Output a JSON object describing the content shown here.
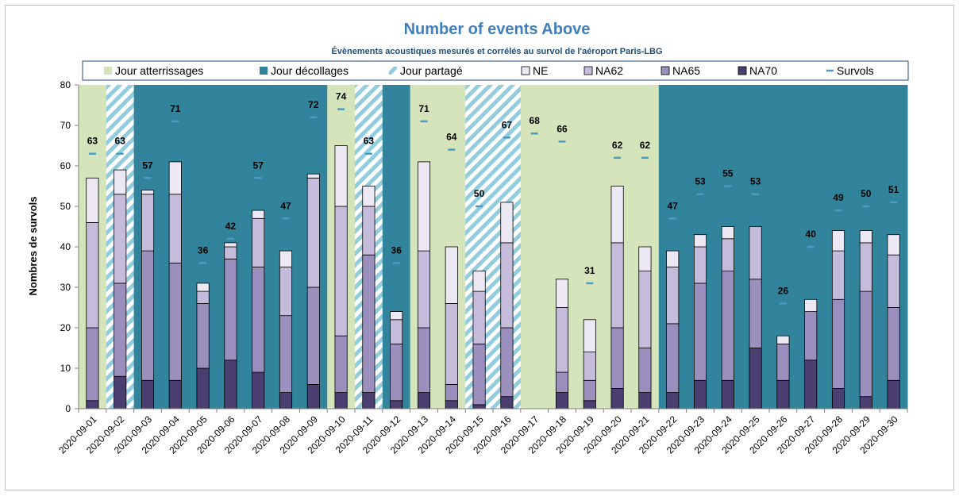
{
  "chart_data": {
    "type": "bar",
    "title": "Number of events Above",
    "subtitle": "Évènements acoustiques mesurés et corrélés au survol de l'aéroport Paris-LBG",
    "xlabel": "",
    "ylabel": "Nombres de survols",
    "ylim": [
      0,
      80
    ],
    "yticks": [
      0,
      10,
      20,
      30,
      40,
      50,
      60,
      70,
      80
    ],
    "categories": [
      "2020-09-01",
      "2020-09-02",
      "2020-09-03",
      "2020-09-04",
      "2020-09-05",
      "2020-09-06",
      "2020-09-07",
      "2020-09-08",
      "2020-09-09",
      "2020-09-10",
      "2020-09-11",
      "2020-09-12",
      "2020-09-13",
      "2020-09-14",
      "2020-09-15",
      "2020-09-16",
      "2020-09-17",
      "2020-09-18",
      "2020-09-19",
      "2020-09-20",
      "2020-09-21",
      "2020-09-22",
      "2020-09-23",
      "2020-09-24",
      "2020-09-25",
      "2020-09-26",
      "2020-09-27",
      "2020-09-28",
      "2020-09-29",
      "2020-09-30"
    ],
    "background_mode": [
      "atterrissages",
      "partage",
      "decollages",
      "decollages",
      "decollages",
      "decollages",
      "decollages",
      "decollages",
      "decollages",
      "atterrissages",
      "partage",
      "decollages",
      "atterrissages",
      "atterrissages",
      "partage",
      "partage",
      "atterrissages",
      "atterrissages",
      "atterrissages",
      "atterrissages",
      "atterrissages",
      "decollages",
      "decollages",
      "decollages",
      "decollages",
      "decollages",
      "decollages",
      "decollages",
      "decollages",
      "decollages"
    ],
    "series": [
      {
        "name": "NA70",
        "color": "#4b3f72",
        "values": [
          2,
          8,
          7,
          7,
          10,
          12,
          9,
          4,
          6,
          4,
          4,
          2,
          4,
          2,
          1,
          3,
          0,
          4,
          2,
          5,
          4,
          4,
          7,
          7,
          15,
          7,
          12,
          5,
          3,
          7
        ]
      },
      {
        "name": "NA65",
        "color": "#9b8fbd",
        "values": [
          18,
          23,
          32,
          29,
          16,
          25,
          26,
          19,
          24,
          14,
          34,
          14,
          16,
          4,
          15,
          17,
          0,
          5,
          5,
          15,
          11,
          17,
          24,
          27,
          17,
          9,
          12,
          22,
          26,
          18
        ]
      },
      {
        "name": "NA62",
        "color": "#c5bcdb",
        "values": [
          26,
          22,
          14,
          17,
          3,
          3,
          12,
          12,
          27,
          32,
          12,
          6,
          19,
          20,
          13,
          21,
          0,
          16,
          7,
          21,
          19,
          14,
          9,
          8,
          13,
          0,
          0,
          12,
          12,
          13
        ]
      },
      {
        "name": "NE",
        "color": "#ece9f4",
        "values": [
          11,
          6,
          1,
          8,
          2,
          1,
          2,
          4,
          1,
          15,
          5,
          2,
          22,
          14,
          5,
          10,
          0,
          7,
          8,
          14,
          6,
          4,
          3,
          3,
          0,
          2,
          3,
          5,
          3,
          5
        ]
      }
    ],
    "survols": {
      "name": "Survols",
      "color": "#4b9cc3",
      "values": [
        63,
        63,
        57,
        71,
        36,
        42,
        57,
        47,
        72,
        74,
        63,
        36,
        71,
        64,
        50,
        67,
        68,
        66,
        31,
        62,
        62,
        47,
        53,
        55,
        53,
        26,
        40,
        49,
        50,
        51
      ]
    },
    "legend": {
      "placement": "top",
      "items": [
        {
          "label": "Jour atterrissages",
          "kind": "fill",
          "color": "#d6e4bc"
        },
        {
          "label": "Jour décollages",
          "kind": "fill",
          "color": "#31849b"
        },
        {
          "label": "Jour partagé",
          "kind": "hatch",
          "color": "#93cddd"
        },
        {
          "label": "NE",
          "kind": "fill",
          "color": "#ece9f4"
        },
        {
          "label": "NA62",
          "kind": "fill",
          "color": "#c5bcdb"
        },
        {
          "label": "NA65",
          "kind": "fill",
          "color": "#9b8fbd"
        },
        {
          "label": "NA70",
          "kind": "fill",
          "color": "#4b3f72"
        },
        {
          "label": "Survols",
          "kind": "dash",
          "color": "#4b9cc3"
        }
      ]
    },
    "background_colors": {
      "atterrissages": "#d6e4bc",
      "decollages": "#31849b",
      "partage": "#93cddd"
    },
    "grid": false
  }
}
